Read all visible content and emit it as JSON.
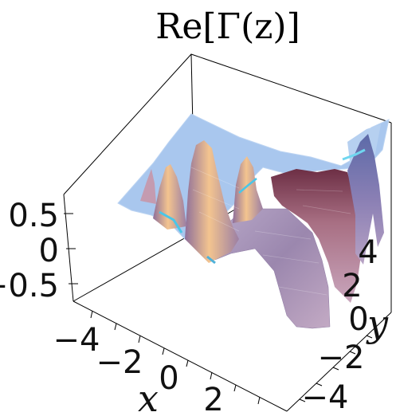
{
  "chart_data": {
    "type": "surface3d",
    "title": "Re[Γ(z)]",
    "xlabel": "x",
    "ylabel": "y",
    "zlabel": "",
    "x_ticks": [
      "−4",
      "−2",
      "0",
      "2"
    ],
    "y_ticks": [
      "4",
      "2",
      "0",
      "−2",
      "−4"
    ],
    "z_ticks": [
      "0.5",
      "0",
      "−0.5"
    ],
    "xlim": [
      -5,
      5
    ],
    "ylim": [
      -5,
      5
    ],
    "zlim": [
      -0.8,
      0.8
    ],
    "colors": {
      "plateau": "#a9c7ee",
      "surface_light": "#f2c79a",
      "surface_mid": "#b88ea8",
      "surface_dark": "#7a3a4e",
      "accent_cyan": "#49c6e8",
      "box_line": "#000000"
    }
  }
}
